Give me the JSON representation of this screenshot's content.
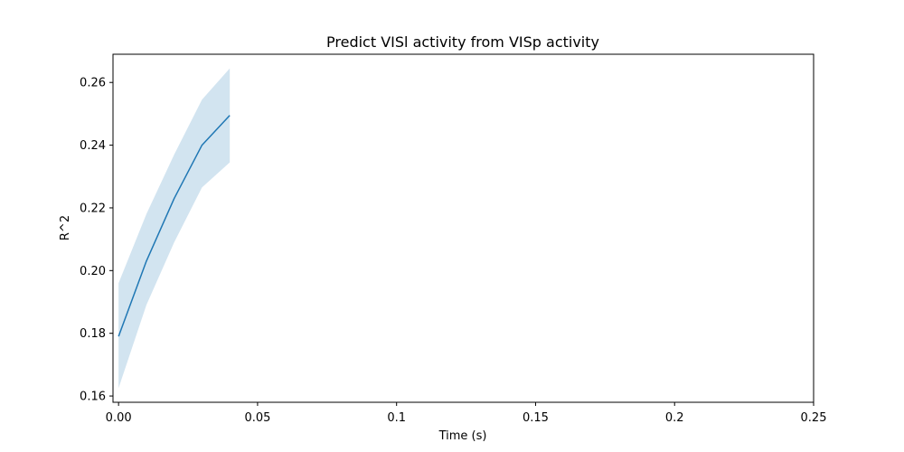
{
  "chart_data": {
    "type": "line",
    "title": "Predict VISl activity from VISp activity",
    "xlabel": "Time (s)",
    "ylabel": "R^2",
    "xlim": [
      -0.002,
      0.25
    ],
    "ylim": [
      0.158,
      0.269
    ],
    "xticks": [
      0,
      0.05,
      0.1,
      0.15,
      0.2,
      0.25
    ],
    "xtick_labels": [
      "0.00",
      "0.05",
      "0.1",
      "0.15",
      "0.2",
      "0.25"
    ],
    "yticks": [
      0.16,
      0.18,
      0.2,
      0.22,
      0.24,
      0.26
    ],
    "ytick_labels": [
      "0.16",
      "0.18",
      "0.20",
      "0.22",
      "0.24",
      "0.26"
    ],
    "grid": false,
    "series": [
      {
        "x": [
          0,
          0.01,
          0.02,
          0.03,
          0.04
        ],
        "y": [
          0.179,
          0.203,
          0.223,
          0.24,
          0.2495
        ],
        "lower": [
          0.1625,
          0.189,
          0.209,
          0.2265,
          0.2345
        ],
        "upper": [
          0.196,
          0.218,
          0.237,
          0.2545,
          0.2645
        ],
        "color": "#1f77b4",
        "band_color": "#1f77b4"
      }
    ]
  }
}
